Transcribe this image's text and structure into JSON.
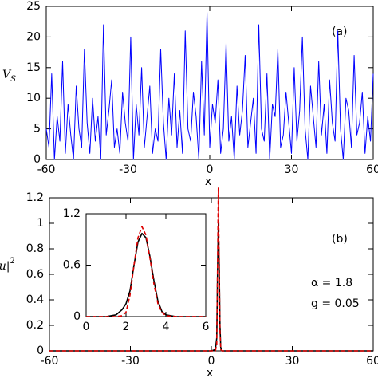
{
  "chart_data": [
    {
      "type": "line",
      "xlabel": "x",
      "ylabel": "V",
      "ylabel_sub": "S",
      "xlim": [
        -60,
        60
      ],
      "xticks": [
        -60,
        -30,
        0,
        30,
        60
      ],
      "ylim": [
        0,
        25
      ],
      "yticks": [
        0,
        5,
        10,
        15,
        20,
        25
      ],
      "annotations": [
        "(a)"
      ],
      "x": [
        -60,
        -59,
        -58,
        -57,
        -56,
        -55,
        -54,
        -53,
        -52,
        -51,
        -50,
        -49,
        -48,
        -47,
        -46,
        -45,
        -44,
        -43,
        -42,
        -41,
        -40,
        -39,
        -38,
        -37,
        -36,
        -35,
        -34,
        -33,
        -32,
        -31,
        -30,
        -29,
        -28,
        -27,
        -26,
        -25,
        -24,
        -23,
        -22,
        -21,
        -20,
        -19,
        -18,
        -17,
        -16,
        -15,
        -14,
        -13,
        -12,
        -11,
        -10,
        -9,
        -8,
        -7,
        -6,
        -5,
        -4,
        -3,
        -2,
        -1,
        0,
        1,
        2,
        3,
        4,
        5,
        6,
        7,
        8,
        9,
        10,
        11,
        12,
        13,
        14,
        15,
        16,
        17,
        18,
        19,
        20,
        21,
        22,
        23,
        24,
        25,
        26,
        27,
        28,
        29,
        30,
        31,
        32,
        33,
        34,
        35,
        36,
        37,
        38,
        39,
        40,
        41,
        42,
        43,
        44,
        45,
        46,
        47,
        48,
        49,
        50,
        51,
        52,
        53,
        54,
        55,
        56,
        57,
        58,
        59,
        60
      ],
      "series": [
        {
          "color": "#0000ff",
          "values": [
            5,
            2,
            14,
            0,
            7,
            3,
            16,
            1,
            9,
            4,
            0,
            12,
            5,
            2,
            18,
            6,
            1,
            10,
            3,
            7,
            0,
            22,
            4,
            8,
            13,
            2,
            5,
            1,
            11,
            6,
            3,
            20,
            0,
            9,
            4,
            15,
            2,
            7,
            12,
            1,
            5,
            3,
            18,
            6,
            0,
            10,
            4,
            14,
            2,
            8,
            1,
            21,
            5,
            3,
            11,
            7,
            0,
            16,
            4,
            24,
            2,
            9,
            6,
            13,
            1,
            5,
            19,
            3,
            7,
            0,
            12,
            4,
            8,
            17,
            2,
            6,
            10,
            1,
            22,
            5,
            3,
            14,
            0,
            9,
            7,
            18,
            2,
            4,
            11,
            6,
            1,
            15,
            3,
            8,
            20,
            5,
            0,
            12,
            7,
            2,
            16,
            4,
            9,
            1,
            13,
            6,
            3,
            21,
            5,
            0,
            10,
            8,
            2,
            17,
            4,
            6,
            11,
            1,
            7,
            3,
            14
          ]
        }
      ]
    },
    {
      "type": "line",
      "xlabel": "x",
      "ylabel": "|u|",
      "ylabel_sup": "2",
      "xlim": [
        -60,
        60
      ],
      "xticks": [
        -60,
        -30,
        0,
        30,
        60
      ],
      "ylim": [
        0,
        1.2
      ],
      "yticks": [
        0,
        0.2,
        0.4,
        0.6,
        0.8,
        1,
        1.2
      ],
      "annotations": [
        "(b)",
        "α = 1.8",
        "g = 0.05"
      ],
      "x": [
        -60,
        0,
        1.5,
        2,
        2.3,
        2.6,
        2.9,
        3.2,
        3.5,
        4,
        60
      ],
      "series": [
        {
          "color": "#000000",
          "dash": false,
          "values": [
            0,
            0,
            0.01,
            0.1,
            0.6,
            1.0,
            0.7,
            0.2,
            0.02,
            0,
            0
          ]
        },
        {
          "color": "#dd0000",
          "dash": true,
          "values": [
            0,
            0,
            0,
            0.05,
            0.65,
            1.28,
            0.7,
            0.15,
            0.01,
            0,
            0
          ]
        }
      ]
    },
    {
      "type": "line",
      "xlim": [
        0,
        6
      ],
      "xticks": [
        0,
        2,
        4,
        6
      ],
      "ylim": [
        0,
        1.2
      ],
      "yticks": [
        0,
        0.6,
        1.2
      ],
      "x": [
        0,
        1,
        1.5,
        1.8,
        2,
        2.2,
        2.4,
        2.6,
        2.8,
        3,
        3.2,
        3.4,
        3.6,
        3.8,
        4,
        4.5,
        6
      ],
      "series": [
        {
          "color": "#000000",
          "dash": false,
          "values": [
            0,
            0,
            0.02,
            0.08,
            0.15,
            0.3,
            0.6,
            0.87,
            0.97,
            0.92,
            0.7,
            0.42,
            0.18,
            0.06,
            0.02,
            0,
            0
          ]
        },
        {
          "color": "#dd0000",
          "dash": true,
          "values": [
            0,
            0,
            0,
            0.01,
            0.05,
            0.25,
            0.6,
            0.92,
            1.05,
            0.95,
            0.68,
            0.38,
            0.15,
            0.05,
            0.01,
            0,
            0
          ]
        }
      ]
    }
  ]
}
